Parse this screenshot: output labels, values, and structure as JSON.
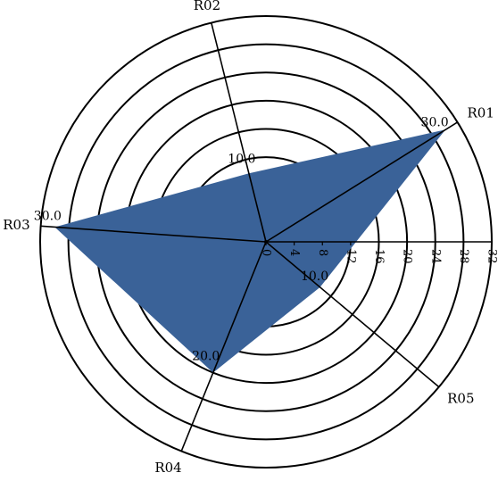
{
  "chart_data": {
    "type": "radar",
    "title": "",
    "categories": [
      "R01",
      "R02",
      "R03",
      "R04",
      "R05"
    ],
    "series": [
      {
        "values": [
          30.0,
          10.0,
          30.0,
          20.0,
          10.0
        ],
        "color": "#3A6298"
      }
    ],
    "value_labels": [
      "30.0",
      "10.0",
      "30.0",
      "20.0",
      "10.0"
    ],
    "radial_ticks": [
      "0",
      "4",
      "8",
      "12",
      "16",
      "20",
      "24",
      "28",
      "32"
    ],
    "radial_range": [
      0,
      32
    ],
    "grid": true
  }
}
